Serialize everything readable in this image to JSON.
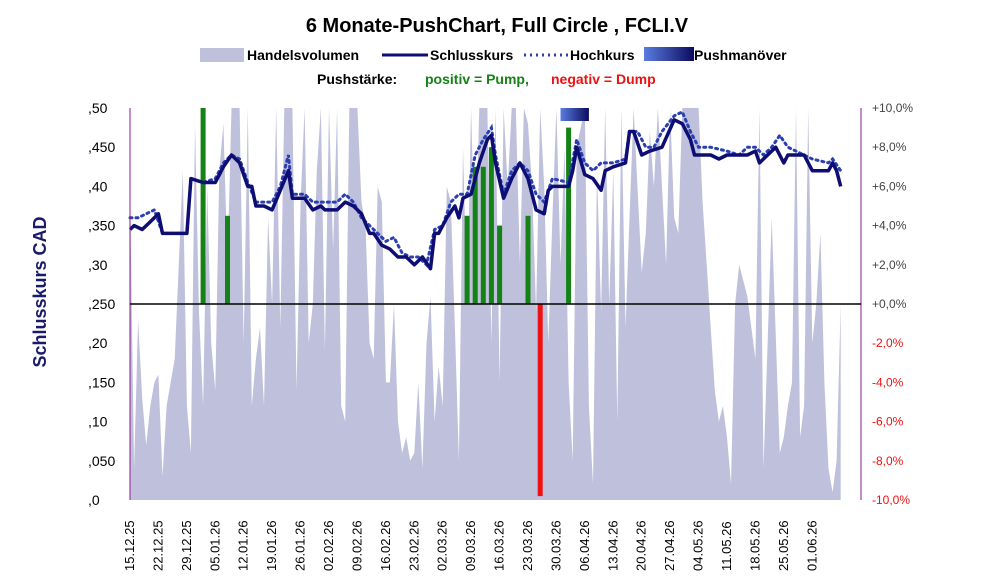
{
  "chart_data": {
    "type": "line",
    "title": "6 Monate-PushChart, Full Circle , FCLI.V",
    "legend": {
      "placement": "top",
      "entries": [
        "Handelsvolumen",
        "Schlusskurs",
        "Hochkurs",
        "Pushmanöver"
      ]
    },
    "subtitle": {
      "prefix": "Pushstärke:",
      "positive": "positiv = Pump,",
      "negative": "negativ = Dump"
    },
    "colors": {
      "volume": "#bfc0dc",
      "close": "#0d0d73",
      "high": "#2a3fb0",
      "pump": "#148214",
      "dump": "#ee1111",
      "right_axis": "#8b1a8b",
      "push_gradient_start": "#5a7de0",
      "push_gradient_end": "#0b0b5e"
    },
    "ylabel": "Schlusskurs CAD",
    "ylim": [
      0,
      0.5
    ],
    "y_ticks": [
      ",0",
      ",050",
      ",10",
      ",150",
      ",20",
      ",250",
      ",30",
      ",350",
      ",40",
      ",450",
      ",50"
    ],
    "y2lim": [
      -10,
      10
    ],
    "y2_ticks": [
      "-10,0%",
      "-8,0%",
      "-6,0%",
      "-4,0%",
      "-2,0%",
      "+0,0%",
      "+2,0%",
      "+4,0%",
      "+6,0%",
      "+8,0%",
      "+10,0%"
    ],
    "x_ticks": [
      "15.12.25",
      "22.12.25",
      "29.12.25",
      "05.01.26",
      "12.01.26",
      "19.01.26",
      "26.01.26",
      "02.02.26",
      "09.02.26",
      "16.02.26",
      "23.02.26",
      "02.03.26",
      "09.03.26",
      "16.03.26",
      "23.03.26",
      "30.03.26",
      "06.04.26",
      "13.04.26",
      "20.04.26",
      "27.04.26",
      "04.05.26",
      "11.05.26",
      "18.05.26",
      "25.05.26",
      "01.06.26"
    ],
    "x_span_days": 180,
    "grid": false,
    "close": [
      [
        0,
        0.345
      ],
      [
        1,
        0.35
      ],
      [
        3,
        0.345
      ],
      [
        5,
        0.355
      ],
      [
        7,
        0.365
      ],
      [
        8,
        0.34
      ],
      [
        14,
        0.34
      ],
      [
        15,
        0.41
      ],
      [
        18,
        0.405
      ],
      [
        21,
        0.405
      ],
      [
        23,
        0.425
      ],
      [
        25,
        0.44
      ],
      [
        27,
        0.43
      ],
      [
        29,
        0.4
      ],
      [
        30,
        0.4
      ],
      [
        31,
        0.375
      ],
      [
        33,
        0.375
      ],
      [
        35,
        0.37
      ],
      [
        37,
        0.395
      ],
      [
        39,
        0.42
      ],
      [
        40,
        0.385
      ],
      [
        43,
        0.385
      ],
      [
        45,
        0.37
      ],
      [
        47,
        0.375
      ],
      [
        48,
        0.37
      ],
      [
        51,
        0.37
      ],
      [
        53,
        0.38
      ],
      [
        55,
        0.375
      ],
      [
        57,
        0.365
      ],
      [
        59,
        0.34
      ],
      [
        60,
        0.34
      ],
      [
        62,
        0.325
      ],
      [
        64,
        0.32
      ],
      [
        66,
        0.31
      ],
      [
        68,
        0.31
      ],
      [
        70,
        0.3
      ],
      [
        72,
        0.31
      ],
      [
        74,
        0.295
      ],
      [
        75,
        0.34
      ],
      [
        76,
        0.34
      ],
      [
        78,
        0.36
      ],
      [
        80,
        0.375
      ],
      [
        81,
        0.36
      ],
      [
        82,
        0.385
      ],
      [
        84,
        0.39
      ],
      [
        86,
        0.43
      ],
      [
        88,
        0.46
      ],
      [
        89,
        0.465
      ],
      [
        90,
        0.43
      ],
      [
        92,
        0.385
      ],
      [
        94,
        0.41
      ],
      [
        96,
        0.43
      ],
      [
        98,
        0.41
      ],
      [
        100,
        0.37
      ],
      [
        102,
        0.365
      ],
      [
        103,
        0.395
      ],
      [
        104,
        0.4
      ],
      [
        108,
        0.4
      ],
      [
        109,
        0.42
      ],
      [
        110,
        0.45
      ],
      [
        112,
        0.415
      ],
      [
        114,
        0.41
      ],
      [
        116,
        0.395
      ],
      [
        117,
        0.42
      ],
      [
        119,
        0.425
      ],
      [
        122,
        0.43
      ],
      [
        123,
        0.47
      ],
      [
        124,
        0.47
      ],
      [
        126,
        0.44
      ],
      [
        128,
        0.445
      ],
      [
        131,
        0.45
      ],
      [
        134,
        0.485
      ],
      [
        136,
        0.48
      ],
      [
        138,
        0.46
      ],
      [
        139,
        0.44
      ],
      [
        143,
        0.44
      ],
      [
        145,
        0.435
      ],
      [
        147,
        0.44
      ],
      [
        150,
        0.44
      ],
      [
        152,
        0.44
      ],
      [
        154,
        0.445
      ],
      [
        155,
        0.43
      ],
      [
        157,
        0.44
      ],
      [
        159,
        0.45
      ],
      [
        161,
        0.43
      ],
      [
        162,
        0.44
      ],
      [
        164,
        0.44
      ],
      [
        166,
        0.44
      ],
      [
        168,
        0.42
      ],
      [
        172,
        0.42
      ],
      [
        173,
        0.43
      ],
      [
        174,
        0.42
      ],
      [
        175,
        0.4
      ]
    ],
    "high": [
      [
        0,
        0.36
      ],
      [
        2,
        0.36
      ],
      [
        4,
        0.365
      ],
      [
        6,
        0.37
      ],
      [
        8,
        0.34
      ],
      [
        14,
        0.34
      ],
      [
        15,
        0.41
      ],
      [
        18,
        0.405
      ],
      [
        21,
        0.41
      ],
      [
        23,
        0.43
      ],
      [
        25,
        0.44
      ],
      [
        27,
        0.435
      ],
      [
        29,
        0.405
      ],
      [
        31,
        0.38
      ],
      [
        33,
        0.38
      ],
      [
        35,
        0.38
      ],
      [
        37,
        0.4
      ],
      [
        39,
        0.44
      ],
      [
        40,
        0.39
      ],
      [
        43,
        0.39
      ],
      [
        45,
        0.38
      ],
      [
        47,
        0.38
      ],
      [
        51,
        0.38
      ],
      [
        53,
        0.39
      ],
      [
        55,
        0.38
      ],
      [
        57,
        0.36
      ],
      [
        59,
        0.35
      ],
      [
        61,
        0.34
      ],
      [
        63,
        0.33
      ],
      [
        65,
        0.335
      ],
      [
        67,
        0.315
      ],
      [
        69,
        0.31
      ],
      [
        71,
        0.31
      ],
      [
        73,
        0.3
      ],
      [
        75,
        0.345
      ],
      [
        77,
        0.35
      ],
      [
        79,
        0.38
      ],
      [
        81,
        0.39
      ],
      [
        83,
        0.39
      ],
      [
        85,
        0.44
      ],
      [
        87,
        0.46
      ],
      [
        89,
        0.475
      ],
      [
        90,
        0.44
      ],
      [
        92,
        0.39
      ],
      [
        94,
        0.42
      ],
      [
        96,
        0.43
      ],
      [
        98,
        0.42
      ],
      [
        100,
        0.39
      ],
      [
        102,
        0.38
      ],
      [
        104,
        0.41
      ],
      [
        108,
        0.405
      ],
      [
        110,
        0.46
      ],
      [
        112,
        0.43
      ],
      [
        114,
        0.42
      ],
      [
        116,
        0.43
      ],
      [
        119,
        0.43
      ],
      [
        122,
        0.435
      ],
      [
        123,
        0.47
      ],
      [
        125,
        0.47
      ],
      [
        127,
        0.45
      ],
      [
        129,
        0.45
      ],
      [
        131,
        0.47
      ],
      [
        134,
        0.49
      ],
      [
        136,
        0.495
      ],
      [
        138,
        0.47
      ],
      [
        140,
        0.45
      ],
      [
        143,
        0.45
      ],
      [
        147,
        0.445
      ],
      [
        150,
        0.44
      ],
      [
        152,
        0.45
      ],
      [
        154,
        0.45
      ],
      [
        156,
        0.44
      ],
      [
        158,
        0.45
      ],
      [
        160,
        0.465
      ],
      [
        162,
        0.45
      ],
      [
        164,
        0.445
      ],
      [
        166,
        0.44
      ],
      [
        168,
        0.435
      ],
      [
        172,
        0.43
      ],
      [
        173,
        0.435
      ],
      [
        175,
        0.42
      ]
    ],
    "volume": [
      [
        0,
        0.4
      ],
      [
        1,
        0.04
      ],
      [
        2,
        0.23
      ],
      [
        3,
        0.13
      ],
      [
        4,
        0.07
      ],
      [
        5,
        0.12
      ],
      [
        6,
        0.15
      ],
      [
        7,
        0.16
      ],
      [
        8,
        0.03
      ],
      [
        9,
        0.12
      ],
      [
        11,
        0.18
      ],
      [
        13,
        0.42
      ],
      [
        14,
        0.12
      ],
      [
        15,
        0.06
      ],
      [
        16,
        0.48
      ],
      [
        17,
        0.24
      ],
      [
        18,
        0.12
      ],
      [
        19,
        0.4
      ],
      [
        20,
        0.2
      ],
      [
        21,
        0.14
      ],
      [
        22,
        0.42
      ],
      [
        23,
        0.48
      ],
      [
        24,
        0.3
      ],
      [
        25,
        0.6
      ],
      [
        26,
        0.5
      ],
      [
        27,
        0.6
      ],
      [
        28,
        0.2
      ],
      [
        29,
        0.6
      ],
      [
        30,
        0.12
      ],
      [
        31,
        0.18
      ],
      [
        32,
        0.22
      ],
      [
        33,
        0.12
      ],
      [
        34,
        0.36
      ],
      [
        35,
        0.25
      ],
      [
        36,
        0.6
      ],
      [
        37,
        0.22
      ],
      [
        38,
        0.6
      ],
      [
        40,
        0.6
      ],
      [
        41,
        0.14
      ],
      [
        42,
        0.38
      ],
      [
        43,
        0.6
      ],
      [
        44,
        0.2
      ],
      [
        45,
        0.25
      ],
      [
        46,
        0.42
      ],
      [
        47,
        0.6
      ],
      [
        48,
        0.19
      ],
      [
        49,
        0.6
      ],
      [
        50,
        0.32
      ],
      [
        51,
        0.6
      ],
      [
        52,
        0.12
      ],
      [
        53,
        0.1
      ],
      [
        54,
        0.6
      ],
      [
        56,
        0.6
      ],
      [
        57,
        0.38
      ],
      [
        58,
        0.35
      ],
      [
        59,
        0.2
      ],
      [
        60,
        0.18
      ],
      [
        61,
        0.4
      ],
      [
        62,
        0.38
      ],
      [
        63,
        0.15
      ],
      [
        64,
        0.15
      ],
      [
        65,
        0.25
      ],
      [
        66,
        0.1
      ],
      [
        67,
        0.06
      ],
      [
        68,
        0.08
      ],
      [
        69,
        0.05
      ],
      [
        70,
        0.06
      ],
      [
        71,
        0.15
      ],
      [
        72,
        0.04
      ],
      [
        73,
        0.2
      ],
      [
        74,
        0.26
      ],
      [
        75,
        0.1
      ],
      [
        76,
        0.17
      ],
      [
        77,
        0.12
      ],
      [
        78,
        0.4
      ],
      [
        79,
        0.38
      ],
      [
        80,
        0.22
      ],
      [
        81,
        0.05
      ],
      [
        82,
        0.45
      ],
      [
        83,
        0.25
      ],
      [
        84,
        0.6
      ],
      [
        85,
        0.3
      ],
      [
        86,
        0.6
      ],
      [
        87,
        0.5
      ],
      [
        88,
        0.6
      ],
      [
        89,
        0.2
      ],
      [
        90,
        0.6
      ],
      [
        91,
        0.15
      ],
      [
        92,
        0.6
      ],
      [
        93,
        0.4
      ],
      [
        94,
        0.55
      ],
      [
        95,
        0.6
      ],
      [
        96,
        0.3
      ],
      [
        97,
        0.6
      ],
      [
        98,
        0.48
      ],
      [
        99,
        0.4
      ],
      [
        100,
        0.24
      ],
      [
        101,
        0.6
      ],
      [
        102,
        0.4
      ],
      [
        103,
        0.2
      ],
      [
        104,
        0.36
      ],
      [
        105,
        0.6
      ],
      [
        106,
        0.3
      ],
      [
        107,
        0.45
      ],
      [
        108,
        0.15
      ],
      [
        109,
        0.05
      ],
      [
        110,
        0.45
      ],
      [
        112,
        0.6
      ],
      [
        113,
        0.12
      ],
      [
        114,
        0.02
      ],
      [
        115,
        0.42
      ],
      [
        116,
        0.24
      ],
      [
        117,
        0.6
      ],
      [
        118,
        0.25
      ],
      [
        119,
        0.42
      ],
      [
        120,
        0.1
      ],
      [
        121,
        0.6
      ],
      [
        122,
        0.22
      ],
      [
        123,
        0.36
      ],
      [
        124,
        0.6
      ],
      [
        126,
        0.29
      ],
      [
        127,
        0.34
      ],
      [
        128,
        0.47
      ],
      [
        129,
        0.4
      ],
      [
        130,
        0.6
      ],
      [
        132,
        0.3
      ],
      [
        133,
        0.6
      ],
      [
        134,
        0.36
      ],
      [
        135,
        0.34
      ],
      [
        136,
        0.6
      ],
      [
        137,
        0.56
      ],
      [
        138,
        0.6
      ],
      [
        139,
        0.6
      ],
      [
        140,
        0.6
      ],
      [
        141,
        0.38
      ],
      [
        142,
        0.3
      ],
      [
        143,
        0.22
      ],
      [
        144,
        0.14
      ],
      [
        145,
        0.1
      ],
      [
        146,
        0.12
      ],
      [
        147,
        0.08
      ],
      [
        148,
        0.02
      ],
      [
        149,
        0.25
      ],
      [
        150,
        0.3
      ],
      [
        152,
        0.26
      ],
      [
        154,
        0.18
      ],
      [
        155,
        0.6
      ],
      [
        156,
        0.04
      ],
      [
        157,
        0.2
      ],
      [
        158,
        0.36
      ],
      [
        160,
        0.06
      ],
      [
        161,
        0.08
      ],
      [
        162,
        0.12
      ],
      [
        163,
        0.15
      ],
      [
        164,
        0.6
      ],
      [
        165,
        0.08
      ],
      [
        166,
        0.12
      ],
      [
        167,
        0.6
      ],
      [
        168,
        0.2
      ],
      [
        169,
        0.25
      ],
      [
        170,
        0.34
      ],
      [
        171,
        0.15
      ],
      [
        172,
        0.04
      ],
      [
        173,
        0.01
      ],
      [
        174,
        0.05
      ],
      [
        175,
        0.25
      ]
    ],
    "pushes": [
      {
        "x": 18,
        "value": 10.0
      },
      {
        "x": 24,
        "value": 4.5
      },
      {
        "x": 83,
        "value": 4.5
      },
      {
        "x": 85,
        "value": 7.0
      },
      {
        "x": 87,
        "value": 7.0
      },
      {
        "x": 89,
        "value": 8.0
      },
      {
        "x": 91,
        "value": 4.0
      },
      {
        "x": 98,
        "value": 4.5
      },
      {
        "x": 101,
        "value": -9.8
      },
      {
        "x": 108,
        "value": 9.0
      }
    ],
    "push_maneuver": {
      "from": 106,
      "to": 113
    }
  }
}
